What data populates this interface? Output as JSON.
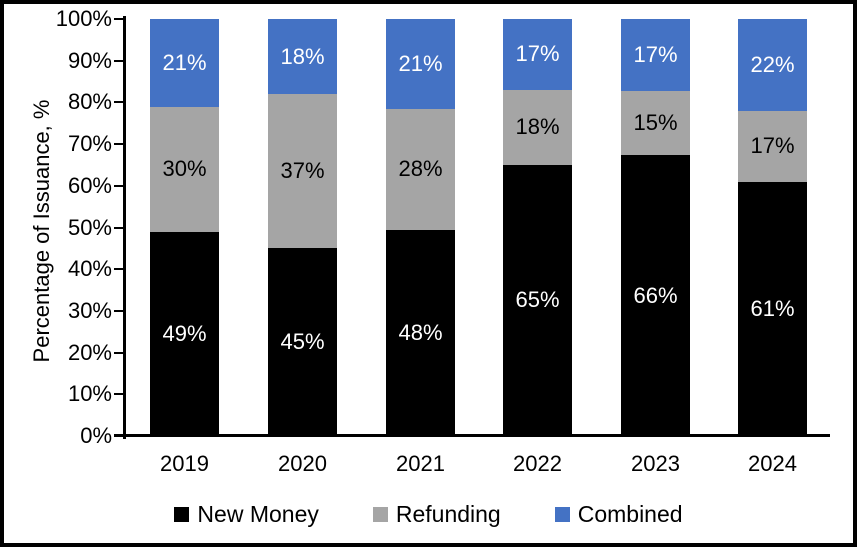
{
  "chart_data": {
    "type": "bar",
    "stacked": true,
    "title": "",
    "ylabel": "Percentage of Issuance, %",
    "xlabel": "",
    "categories": [
      "2019",
      "2020",
      "2021",
      "2022",
      "2023",
      "2024"
    ],
    "series": [
      {
        "name": "New Money",
        "color": "#000000",
        "label_color": "#FFFFFF",
        "values": [
          49,
          45,
          48,
          65,
          66,
          61
        ]
      },
      {
        "name": "Refunding",
        "color": "#A5A5A5",
        "label_color": "#000000",
        "values": [
          30,
          37,
          28,
          18,
          15,
          17
        ]
      },
      {
        "name": "Combined",
        "color": "#4472C4",
        "label_color": "#FFFFFF",
        "values": [
          21,
          18,
          21,
          17,
          17,
          22
        ]
      }
    ],
    "value_suffix": "%",
    "y_ticks": [
      "0%",
      "10%",
      "20%",
      "30%",
      "40%",
      "50%",
      "60%",
      "70%",
      "80%",
      "90%",
      "100%"
    ],
    "ylim": [
      0,
      100
    ],
    "grid": false,
    "legend_position": "bottom"
  },
  "frame": {
    "background": "#FFFFFF",
    "border_color": "#000000",
    "axis_color": "#000000",
    "text_color": "#000000"
  }
}
